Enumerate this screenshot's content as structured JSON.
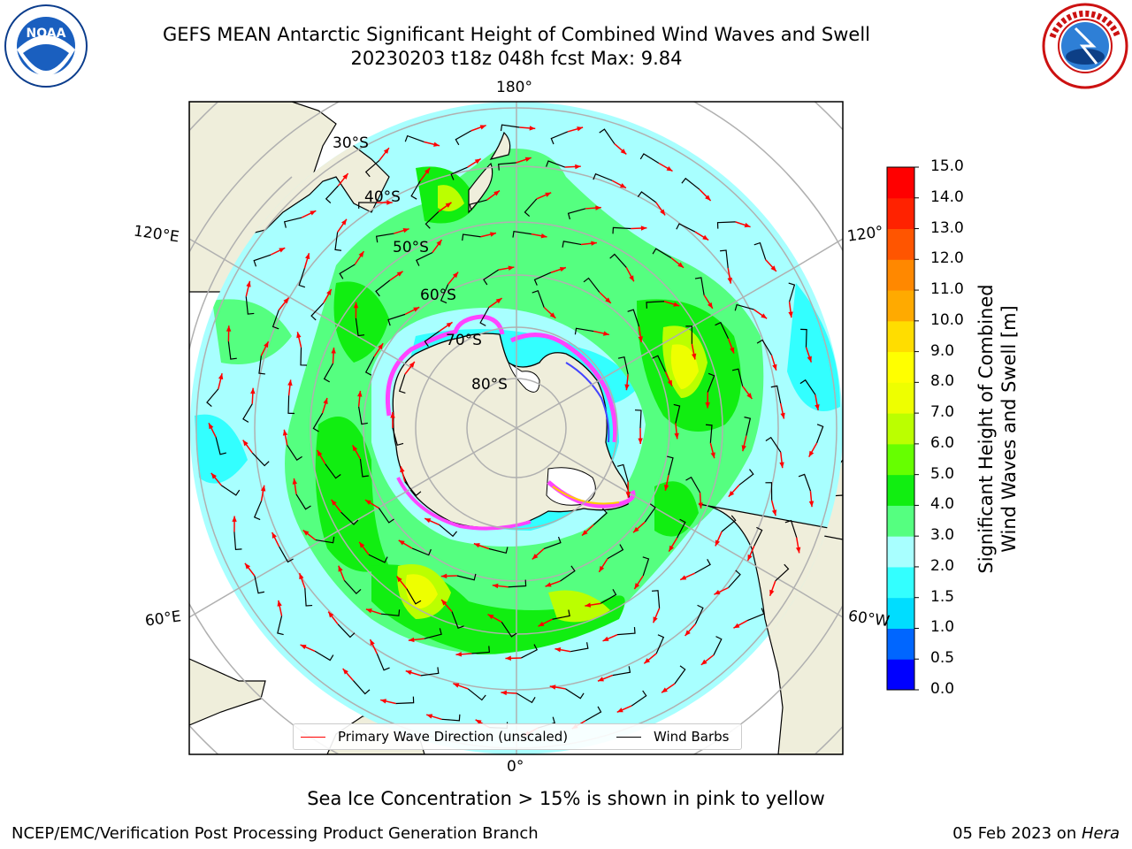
{
  "title": {
    "line1": "GEFS MEAN Antarctic Significant Height of Combined Wind Waves and Swell",
    "line2": "20230203 t18z 048h fcst   Max: 9.84"
  },
  "logos": {
    "left": {
      "name": "noaa-logo",
      "text": "NOAA",
      "ring_text": "NATIONAL OCEANIC AND ATMOSPHERIC ADMINISTRATION · U.S. DEPARTMENT OF COMMERCE"
    },
    "right": {
      "name": "nws-logo",
      "ring_text": "NATIONAL WEATHER SERVICE"
    }
  },
  "map": {
    "projection": "south-polar-stereographic",
    "longitude_labels": {
      "top": "180°",
      "bottom": "0°",
      "left_upper": "120°E",
      "left_lower": "60°E",
      "right_upper": "120°",
      "right_lower": "60°W"
    },
    "latitude_labels": [
      "30°S",
      "40°S",
      "50°S",
      "60°S",
      "70°S",
      "80°S"
    ]
  },
  "colorbar": {
    "label_line1": "Significant Height of Combined",
    "label_line2": "Wind Waves and Swell [m]",
    "ticks": [
      "0.0",
      "0.5",
      "1.0",
      "1.5",
      "2.0",
      "3.0",
      "4.0",
      "5.0",
      "6.0",
      "7.0",
      "8.0",
      "9.0",
      "10.0",
      "11.0",
      "12.0",
      "13.0",
      "14.0",
      "15.0"
    ],
    "colors": [
      "#0000ff",
      "#0066ff",
      "#00ddff",
      "#33ffff",
      "#a8ffff",
      "#55ff80",
      "#11ee11",
      "#66ff00",
      "#bbff00",
      "#eeff00",
      "#ffff00",
      "#ffdd00",
      "#ffaa00",
      "#ff8800",
      "#ff5500",
      "#ff2200",
      "#ff0000"
    ]
  },
  "legend": {
    "wave_label": "Primary Wave Direction (unscaled)",
    "wave_color": "#ff0000",
    "wind_label": "Wind Barbs",
    "wind_color": "#000000"
  },
  "sea_ice_note": "Sea Ice Concentration > 15% is shown in pink to yellow",
  "footer": {
    "left": "NCEP/EMC/Verification Post Processing Product Generation Branch",
    "date": "05 Feb 2023 on ",
    "machine": "Hera"
  },
  "colors": {
    "land": "#efeedb",
    "ocean_outside": "#ffffff",
    "grid": "#b0b0b0",
    "ice_pink": "#ff44ff",
    "ice_blue": "#4444ff"
  }
}
